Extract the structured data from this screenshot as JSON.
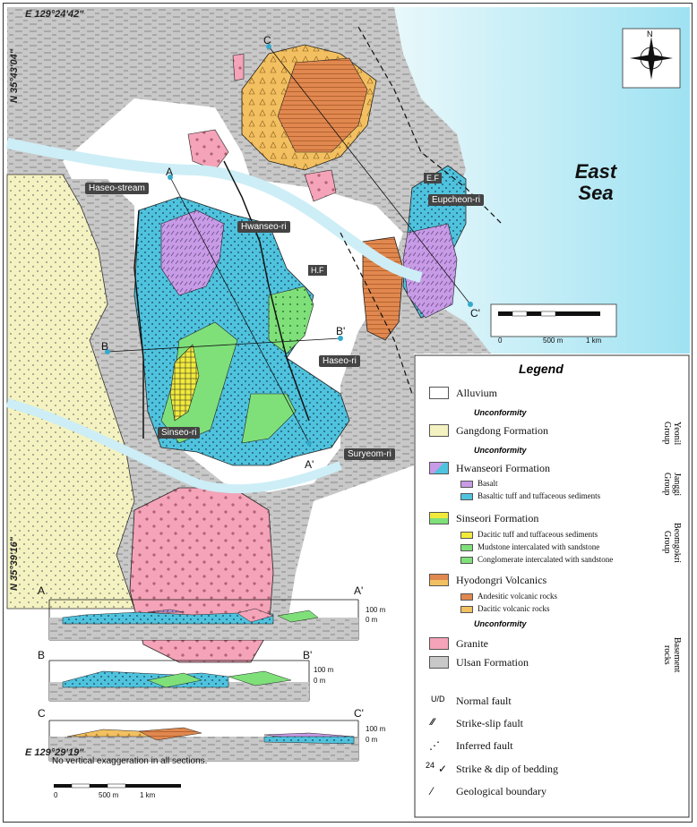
{
  "coords": {
    "top_longitude": "E 129°24'42\"",
    "bottom_longitude": "E 129°29'19\"",
    "top_latitude": "N 35°43'04\"",
    "bottom_latitude": "N 35°39'16\""
  },
  "sea_label": "East Sea",
  "north_arrow": "N",
  "places": {
    "haseo_stream": "Haseo-stream",
    "hwanseo_ri": "Hwanseo-ri",
    "eupcheon_ri": "Eupcheon-ri",
    "haseo_ri": "Haseo-ri",
    "sinseo_ri": "Sinseo-ri",
    "suryeom_ri": "Suryeom-ri"
  },
  "faults": {
    "hf": "H.F",
    "ef": "E.F"
  },
  "section_points": {
    "a": "A",
    "a_prime": "A'",
    "b": "B",
    "b_prime": "B'",
    "c": "C",
    "c_prime": "C'"
  },
  "map_scale": {
    "zero": "0",
    "mid": "500 m",
    "end": "1 km"
  },
  "legend": {
    "title": "Legend",
    "alluvium": "Alluvium",
    "unconformity": "Unconformity",
    "gangdong": "Gangdong Formation",
    "hwanseori": "Hwanseori Formation",
    "basalt": "Basalt",
    "basaltic_tuff": "Basaltic tuff and tuffaceous sediments",
    "sinseori": "Sinseori Formation",
    "dacitic_tuff": "Dacitic tuff and tuffaceous sediments",
    "mudstone": "Mudstone intercalated with sandstone",
    "conglomerate": "Conglomerate intercalated with sandstone",
    "hyodongri": "Hyodongri Volcanics",
    "andesitic": "Andesitic volcanic rocks",
    "dacitic_volc": "Dacitic volcanic rocks",
    "granite": "Granite",
    "ulsan": "Ulsan Formation",
    "groups": {
      "yeonil": "Yeonil Group",
      "janggi": "Janggi Group",
      "beomgokri": "Beomgokri Group",
      "basement": "Basement rocks"
    },
    "normal_fault": "Normal fault",
    "strike_slip": "Strike-slip fault",
    "inferred": "Inferred fault",
    "strike_dip": "Strike & dip of bedding",
    "boundary": "Geological boundary",
    "dip_example": "24",
    "nf_symbol": "U/D"
  },
  "sections": {
    "vert_100": "100 m",
    "vert_0": "0 m",
    "note": "No vertical exaggeration in all sections.",
    "scale_zero": "0",
    "scale_mid": "500 m",
    "scale_end": "1 km"
  },
  "colors": {
    "sea": "#cdeef6",
    "alluvium": "#ffffff",
    "gangdong": "#f4f2c0",
    "hwanseori_tuff": "#4fc3de",
    "basalt": "#c89be6",
    "sinseori_mud": "#7fe07a",
    "dacitic_tuff": "#f2ea3a",
    "andesitic": "#e0884f",
    "dacitic_volc": "#f2c060",
    "granite": "#f4a3b8",
    "ulsan": "#c8c8c8"
  }
}
